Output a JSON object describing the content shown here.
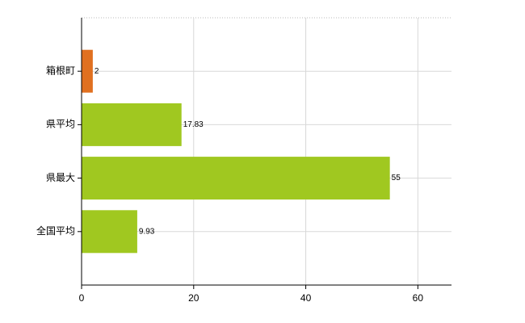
{
  "chart_data": {
    "type": "barh",
    "categories": [
      "箱根町",
      "県平均",
      "県最大",
      "全国平均"
    ],
    "values": [
      2,
      17.83,
      55,
      9.93
    ],
    "colors": [
      "#e07020",
      "#a0c820",
      "#a0c820",
      "#a0c820"
    ],
    "xlim": [
      0,
      66
    ],
    "xticks": [
      0,
      20,
      40,
      60
    ],
    "grid": true
  }
}
